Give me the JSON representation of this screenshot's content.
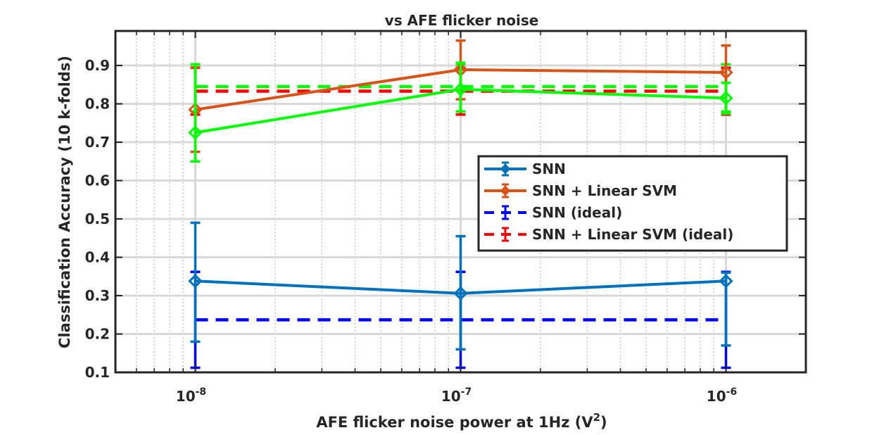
{
  "chart_data": {
    "type": "line",
    "title": "vs AFE flicker noise",
    "xlabel": "AFE flicker noise power at 1Hz (V",
    "xlabel_sup": "2",
    "xlabel_close": ")",
    "ylabel": "Classification Accuracy (10 k-folds)",
    "x_scale": "log",
    "xlim": [
      5e-09,
      2e-06
    ],
    "ylim": [
      0.1,
      0.99
    ],
    "grid": true,
    "minor_grid": true,
    "legend_position": "center-right",
    "x_ticks": [
      {
        "value": 1e-08,
        "base": "10",
        "exp": "-8"
      },
      {
        "value": 1e-07,
        "base": "10",
        "exp": "-7"
      },
      {
        "value": 1e-06,
        "base": "10",
        "exp": "-6"
      }
    ],
    "y_ticks": [
      {
        "value": 0.1,
        "label": "0.1"
      },
      {
        "value": 0.2,
        "label": "0.2"
      },
      {
        "value": 0.3,
        "label": "0.3"
      },
      {
        "value": 0.4,
        "label": "0.4"
      },
      {
        "value": 0.5,
        "label": "0.5"
      },
      {
        "value": 0.6,
        "label": "0.6"
      },
      {
        "value": 0.7,
        "label": "0.7"
      },
      {
        "value": 0.8,
        "label": "0.8"
      },
      {
        "value": 0.9,
        "label": "0.9"
      }
    ],
    "x": [
      1e-08,
      1e-07,
      1e-06
    ],
    "series": [
      {
        "name": "SNN",
        "color": "#0072BD",
        "style": "solid",
        "marker": "diamond",
        "values": [
          0.338,
          0.306,
          0.338
        ],
        "err_low": [
          0.18,
          0.16,
          0.17
        ],
        "err_high": [
          0.49,
          0.455,
          0.36
        ]
      },
      {
        "name": "SNN + Linear SVM",
        "color": "#D95319",
        "style": "solid",
        "marker": "diamond",
        "values": [
          0.785,
          0.889,
          0.882
        ],
        "err_low": [
          0.675,
          0.812,
          0.775
        ],
        "err_high": [
          0.895,
          0.965,
          0.952
        ]
      },
      {
        "name": "SNN (ideal)",
        "color": "#0000FF",
        "style": "dashed",
        "marker": "none",
        "values": [
          0.237,
          0.237,
          0.237
        ],
        "err_low": [
          0.112,
          0.112,
          0.112
        ],
        "err_high": [
          0.362,
          0.362,
          0.362
        ]
      },
      {
        "name": "SNN + Linear SVM (ideal)",
        "color": "#FF0000",
        "style": "dashed",
        "marker": "none",
        "values": [
          0.833,
          0.833,
          0.833
        ],
        "err_low": [
          0.772,
          0.772,
          0.772
        ],
        "err_high": [
          0.894,
          0.894,
          0.894
        ]
      },
      {
        "name": "",
        "legend": false,
        "color": "#00FF00",
        "style": "solid",
        "marker": "diamond",
        "values": [
          0.725,
          0.838,
          0.815
        ],
        "err_low": [
          0.65,
          0.78,
          0.775
        ],
        "err_high": [
          0.903,
          0.907,
          0.855
        ]
      },
      {
        "name": "",
        "legend": false,
        "color": "#00FF00",
        "style": "dashed",
        "marker": "none",
        "values": [
          0.845,
          0.845,
          0.845
        ],
        "err_low": [
          0.78,
          0.78,
          0.78
        ],
        "err_high": [
          0.903,
          0.903,
          0.903
        ]
      }
    ]
  }
}
